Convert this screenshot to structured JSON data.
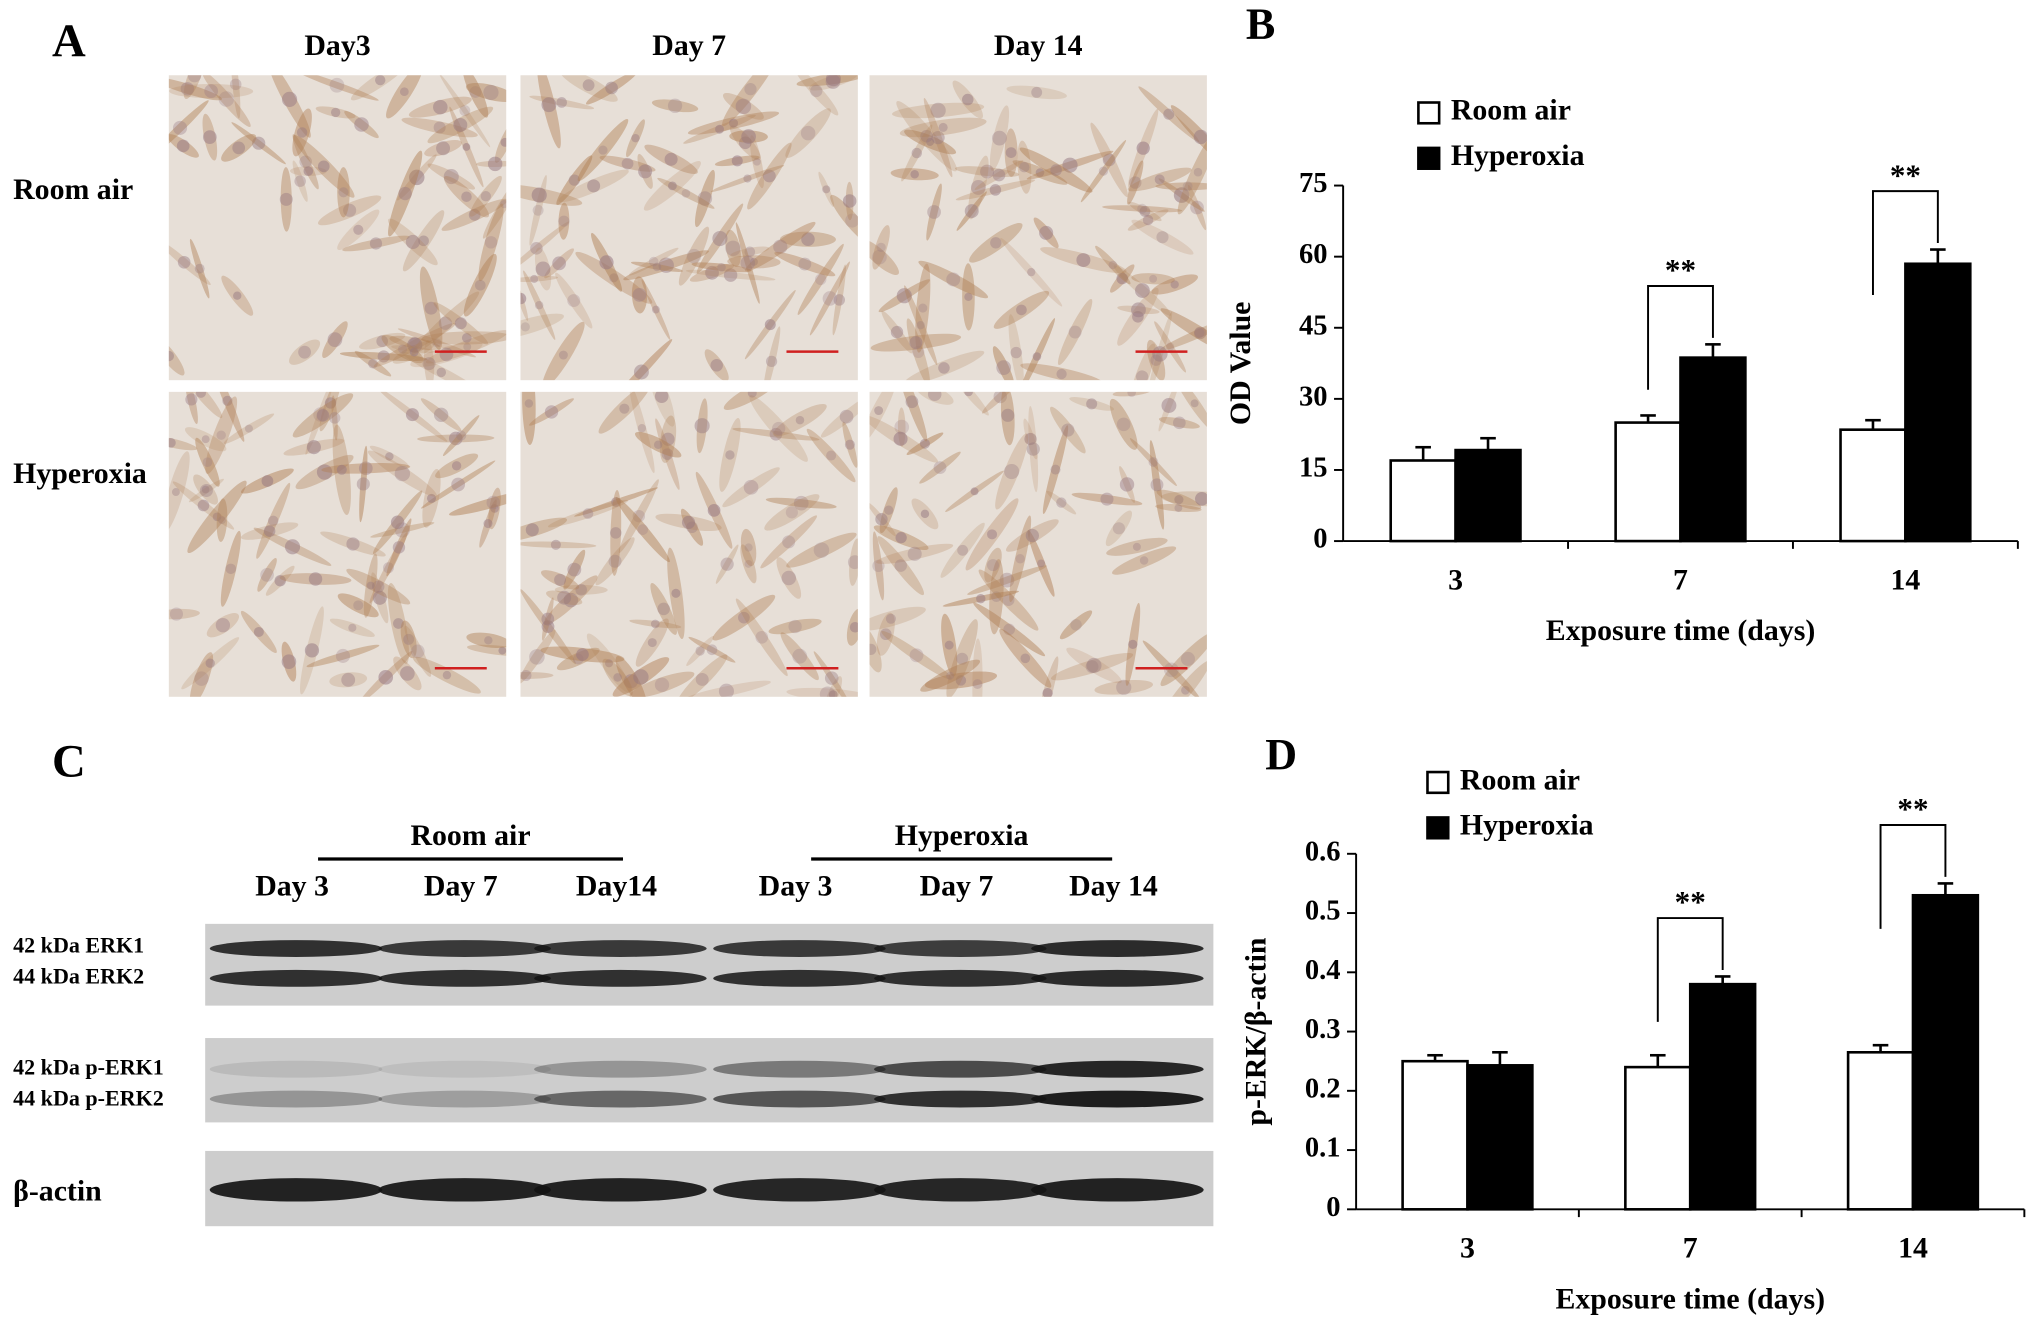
{
  "panel_a": {
    "label": "A",
    "columns": [
      "Day3",
      "Day 7",
      "Day 14"
    ],
    "rows": [
      "Room air",
      "Hyperoxia"
    ]
  },
  "panel_c": {
    "label": "C",
    "groups": [
      {
        "name": "Room air",
        "lanes": [
          "Day 3",
          "Day 7",
          "Day14"
        ]
      },
      {
        "name": "Hyperoxia",
        "lanes": [
          "Day 3",
          "Day 7",
          "Day 14"
        ]
      }
    ],
    "blots": [
      "42 kDa ERK1",
      "44 kDa ERK2",
      "42 kDa  p-ERK1",
      "44 kDa  p-ERK2",
      "β-actin"
    ]
  },
  "chart_data": [
    {
      "type": "bar",
      "panel_label": "B",
      "ylabel": "OD Value",
      "xlabel": "Exposure time (days)",
      "categories": [
        "3",
        "7",
        "14"
      ],
      "edgecolor": "#000000",
      "legend": "upper left",
      "grid": false,
      "series": [
        {
          "name": "Room air",
          "color": "#ffffff",
          "values": [
            17,
            25,
            23.5
          ],
          "errors": [
            2.8,
            1.5,
            2
          ]
        },
        {
          "name": "Hyperoxia",
          "color": "#000000",
          "values": [
            19.2,
            38.7,
            58.5
          ],
          "errors": [
            2.5,
            2.8,
            3
          ]
        }
      ],
      "ylim": [
        0,
        75
      ],
      "yticks": [
        0,
        15,
        30,
        45,
        60,
        75
      ],
      "annotations": [
        {
          "category": "7",
          "text": "**"
        },
        {
          "category": "14",
          "text": "**"
        }
      ]
    },
    {
      "type": "bar",
      "panel_label": "D",
      "ylabel": "p-ERK/β-actin",
      "xlabel": "Exposure time (days)",
      "categories": [
        "3",
        "7",
        "14"
      ],
      "edgecolor": "#000000",
      "legend": "upper left",
      "grid": false,
      "series": [
        {
          "name": "Room air",
          "color": "#ffffff",
          "values": [
            0.25,
            0.24,
            0.265
          ],
          "errors": [
            0.01,
            0.02,
            0.012
          ]
        },
        {
          "name": "Hyperoxia",
          "color": "#000000",
          "values": [
            0.243,
            0.38,
            0.53
          ],
          "errors": [
            0.022,
            0.013,
            0.02
          ]
        }
      ],
      "ylim": [
        0,
        0.6
      ],
      "yticks": [
        0,
        0.1,
        0.2,
        0.3,
        0.4,
        0.5,
        0.6
      ],
      "annotations": [
        {
          "category": "7",
          "text": "**"
        },
        {
          "category": "14",
          "text": "**"
        }
      ]
    }
  ]
}
